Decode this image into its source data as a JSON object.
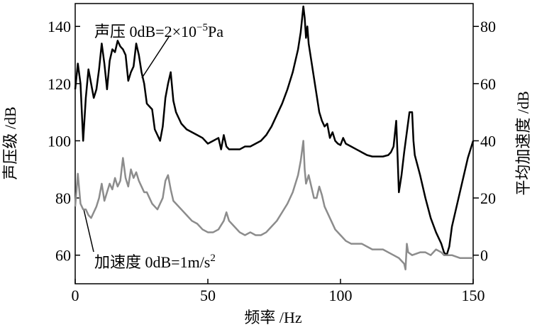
{
  "chart_data": {
    "type": "line",
    "xlabel": "频率 /Hz",
    "ylabel": "声压级 /dB",
    "y2label": "平均加速度 /dB",
    "annotations": [
      {
        "text": "声压 0dB=2×10",
        "sup": "−5",
        "after": "Pa"
      },
      {
        "text": "加速度 0dB=1m/s",
        "sup": "2"
      }
    ],
    "xlim": [
      0,
      150
    ],
    "xticks": [
      0,
      50,
      100,
      150
    ],
    "ylim": [
      50,
      148
    ],
    "yticks": [
      60,
      80,
      100,
      120,
      140
    ],
    "y2lim": [
      -10,
      88
    ],
    "y2ticks": [
      0,
      20,
      40,
      60,
      80
    ],
    "series": [
      {
        "color": "#000000",
        "axis": "y",
        "x": [
          0,
          1,
          2,
          3,
          4,
          5,
          6,
          7,
          8,
          9,
          10,
          11,
          12,
          13,
          14,
          15,
          16,
          17,
          18,
          19,
          20,
          21,
          22,
          23,
          24,
          25,
          26,
          27,
          28,
          29,
          30,
          31,
          32,
          33,
          34,
          35,
          36,
          37,
          38,
          39,
          40,
          42,
          44,
          46,
          48,
          50,
          52,
          54,
          55,
          56,
          57,
          58,
          60,
          62,
          64,
          66,
          68,
          70,
          72,
          74,
          76,
          78,
          80,
          82,
          84,
          85,
          86,
          86.5,
          87,
          87.5,
          88,
          89,
          90,
          91,
          92,
          93,
          94,
          95,
          96,
          97,
          98,
          99,
          100,
          101,
          102,
          104,
          106,
          108,
          110,
          112,
          116,
          118,
          119,
          120,
          121,
          121.5,
          122,
          123,
          124,
          125,
          126,
          127,
          127.5,
          128,
          130,
          132,
          134,
          136,
          138,
          139,
          140,
          141,
          142,
          144,
          146,
          148,
          150
        ],
        "values": [
          118,
          127,
          120,
          100,
          115,
          125,
          120,
          115,
          118,
          125,
          134,
          127,
          118,
          128,
          132,
          131,
          135,
          133,
          132,
          130,
          121,
          124,
          126,
          134,
          130,
          124,
          120,
          113,
          112,
          111,
          104,
          102,
          100,
          105,
          115,
          120,
          124,
          114,
          110,
          108,
          106,
          104,
          103,
          102,
          101,
          99,
          100,
          101,
          97,
          102,
          98,
          97,
          97,
          97,
          98,
          98,
          99,
          100,
          102,
          105,
          109,
          113,
          118,
          124,
          132,
          138,
          147,
          143,
          136,
          140,
          134,
          128,
          122,
          116,
          110,
          107,
          105,
          106,
          101,
          103,
          100,
          99,
          98.5,
          101,
          99,
          98,
          97,
          96,
          95,
          94.5,
          94.5,
          95,
          96,
          98,
          107,
          95,
          82,
          88,
          96,
          103,
          110,
          110,
          100,
          95,
          88,
          80,
          73,
          68,
          64,
          61,
          60,
          63,
          70,
          78,
          86,
          94,
          100
        ]
      },
      {
        "color": "#8c8c8c",
        "axis": "y2",
        "x": [
          0,
          1,
          2,
          3,
          4,
          5,
          6,
          7,
          8,
          9,
          10,
          11,
          12,
          13,
          14,
          15,
          16,
          17,
          18,
          19,
          20,
          21,
          22,
          23,
          24,
          25,
          26,
          27,
          28,
          29,
          30,
          31,
          32,
          33,
          34,
          35,
          36,
          37,
          38,
          40,
          42,
          44,
          46,
          48,
          50,
          52,
          54,
          56,
          57,
          58,
          60,
          62,
          64,
          66,
          68,
          70,
          72,
          74,
          76,
          78,
          80,
          82,
          84,
          85,
          86,
          86.5,
          87,
          88,
          89,
          90,
          91,
          92,
          93,
          94,
          96,
          98,
          100,
          102,
          104,
          106,
          108,
          110,
          112,
          114,
          116,
          118,
          120,
          122,
          124,
          124.5,
          125,
          125.5,
          127,
          130,
          132,
          134,
          136,
          138,
          139,
          140,
          142,
          145,
          150
        ],
        "values": [
          17,
          28.5,
          18,
          16,
          16,
          14,
          13,
          15,
          17,
          20,
          25,
          19,
          22,
          25,
          23,
          27,
          24,
          26,
          34,
          27,
          24,
          30,
          27,
          29,
          26,
          24,
          22,
          22,
          20,
          18,
          17,
          16,
          18,
          20,
          26,
          28,
          23,
          19,
          18,
          16,
          14,
          12,
          11,
          9,
          8,
          8,
          9,
          12,
          15,
          12,
          10,
          8,
          7,
          8,
          7,
          7,
          8,
          10,
          12,
          15,
          18,
          22,
          28,
          33,
          40,
          30,
          25,
          28,
          24,
          20,
          20,
          24,
          21,
          17,
          13,
          9,
          7,
          5,
          4,
          4,
          4,
          3,
          2,
          2,
          2,
          1,
          0,
          -1,
          -3,
          -5,
          4,
          1,
          0,
          1,
          1,
          0,
          2,
          1,
          0,
          0,
          0,
          -1,
          -1
        ]
      }
    ]
  }
}
